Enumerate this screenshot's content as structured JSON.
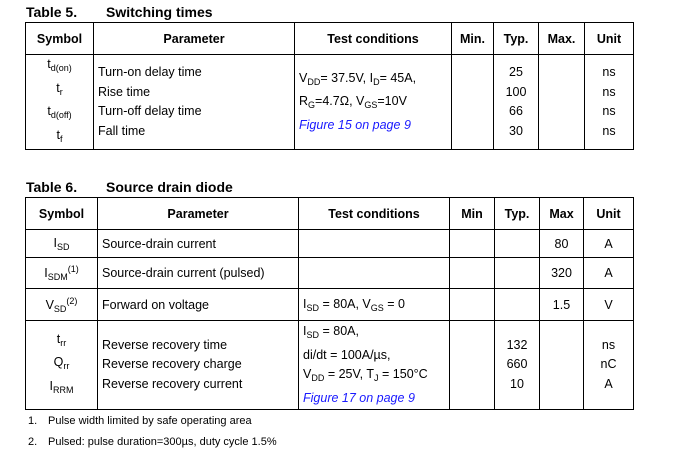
{
  "table5": {
    "number": "Table 5.",
    "title": "Switching times",
    "headers": [
      "Symbol",
      "Parameter",
      "Test conditions",
      "Min.",
      "Typ.",
      "Max.",
      "Unit"
    ],
    "symbols": [
      [
        [
          "t",
          ""
        ],
        [
          "d(on)",
          "sub"
        ]
      ],
      [
        [
          "t",
          ""
        ],
        [
          "r",
          "sub"
        ]
      ],
      [
        [
          "t",
          ""
        ],
        [
          "d(off)",
          "sub"
        ]
      ],
      [
        [
          "t",
          ""
        ],
        [
          "f",
          "sub"
        ]
      ]
    ],
    "parameters": [
      "Turn-on delay time",
      "Rise time",
      "Turn-off delay time",
      "Fall time"
    ],
    "conditions": [
      [
        [
          "V",
          ""
        ],
        [
          "DD",
          "sub"
        ],
        [
          "= 37.5V, I",
          ""
        ],
        [
          "D",
          "sub"
        ],
        [
          "= 45A,",
          ""
        ]
      ],
      [
        [
          "R",
          ""
        ],
        [
          "G",
          "sub"
        ],
        [
          "=4.7Ω,  V",
          ""
        ],
        [
          "GS",
          "sub"
        ],
        [
          "=10V",
          ""
        ]
      ],
      [
        [
          "Figure 15 on page 9",
          "link"
        ]
      ]
    ],
    "typ": [
      "25",
      "100",
      "66",
      "30"
    ],
    "unit": [
      "ns",
      "ns",
      "ns",
      "ns"
    ]
  },
  "table6": {
    "number": "Table 6.",
    "title": "Source drain diode",
    "headers": [
      "Symbol",
      "Parameter",
      "Test conditions",
      "Min",
      "Typ.",
      "Max",
      "Unit"
    ],
    "rows": [
      {
        "symbol": [
          [
            "I",
            ""
          ],
          [
            "SD",
            "sub"
          ]
        ],
        "parameter": "Source-drain current",
        "conditions": [],
        "typ": "",
        "max": "80",
        "unit": "A"
      },
      {
        "symbol": [
          [
            "I",
            ""
          ],
          [
            "SDM",
            "sub"
          ],
          [
            "(1)",
            "sup"
          ]
        ],
        "parameter": "Source-drain current (pulsed)",
        "conditions": [],
        "typ": "",
        "max": "320",
        "unit": "A"
      },
      {
        "symbol": [
          [
            "V",
            ""
          ],
          [
            "SD",
            "sub"
          ],
          [
            "(2)",
            "sup"
          ]
        ],
        "parameter": "Forward on voltage",
        "conditions": [
          [
            [
              "I",
              ""
            ],
            [
              "SD",
              "sub"
            ],
            [
              " = 80A, V",
              ""
            ],
            [
              "GS",
              "sub"
            ],
            [
              " = 0",
              ""
            ]
          ]
        ],
        "typ": "",
        "max": "1.5",
        "unit": "V"
      }
    ],
    "recovery": {
      "symbols": [
        [
          [
            "t",
            ""
          ],
          [
            "rr",
            "sub"
          ]
        ],
        [
          [
            "Q",
            ""
          ],
          [
            "rr",
            "sub"
          ]
        ],
        [
          [
            "I",
            ""
          ],
          [
            "RRM",
            "sub"
          ]
        ]
      ],
      "parameters": [
        "Reverse recovery time",
        "Reverse recovery charge",
        "Reverse recovery current"
      ],
      "conditions": [
        [
          [
            "I",
            ""
          ],
          [
            "SD",
            "sub"
          ],
          [
            " = 80A,",
            ""
          ]
        ],
        [
          [
            "di/dt = 100A/µs,",
            ""
          ]
        ],
        [
          [
            "V",
            ""
          ],
          [
            "DD",
            "sub"
          ],
          [
            " = 25V, T",
            ""
          ],
          [
            "J",
            "sub"
          ],
          [
            " = 150°C",
            ""
          ]
        ],
        [
          [
            "Figure 17 on page 9",
            "link"
          ]
        ]
      ],
      "typ": [
        "132",
        "660",
        "10"
      ],
      "unit": [
        "ns",
        "nC",
        "A"
      ]
    }
  },
  "footnotes": [
    {
      "n": "1.",
      "text": "Pulse width limited by safe operating area"
    },
    {
      "n": "2.",
      "text": "Pulsed: pulse duration=300µs, duty cycle 1.5%"
    }
  ]
}
